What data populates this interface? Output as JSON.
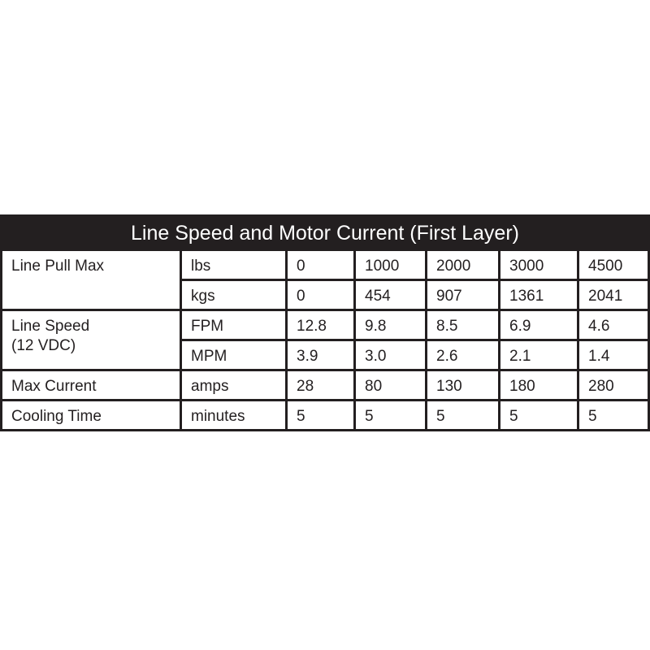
{
  "title": "Line Speed and Motor Current (First Layer)",
  "rows": [
    {
      "label": "Line Pull Max",
      "unit": "lbs",
      "values": [
        "0",
        "1000",
        "2000",
        "3000",
        "4500"
      ]
    },
    {
      "label": "",
      "unit": "kgs",
      "values": [
        "0",
        "454",
        "907",
        "1361",
        "2041"
      ]
    },
    {
      "label": "Line Speed\n(12 VDC)",
      "unit": "FPM",
      "values": [
        "12.8",
        "9.8",
        "8.5",
        "6.9",
        "4.6"
      ]
    },
    {
      "label": "",
      "unit": "MPM",
      "values": [
        "3.9",
        "3.0",
        "2.6",
        "2.1",
        "1.4"
      ]
    },
    {
      "label": "Max Current",
      "unit": "amps",
      "values": [
        "28",
        "80",
        "130",
        "180",
        "280"
      ]
    },
    {
      "label": "Cooling Time",
      "unit": "minutes",
      "values": [
        "5",
        "5",
        "5",
        "5",
        "5"
      ]
    }
  ]
}
